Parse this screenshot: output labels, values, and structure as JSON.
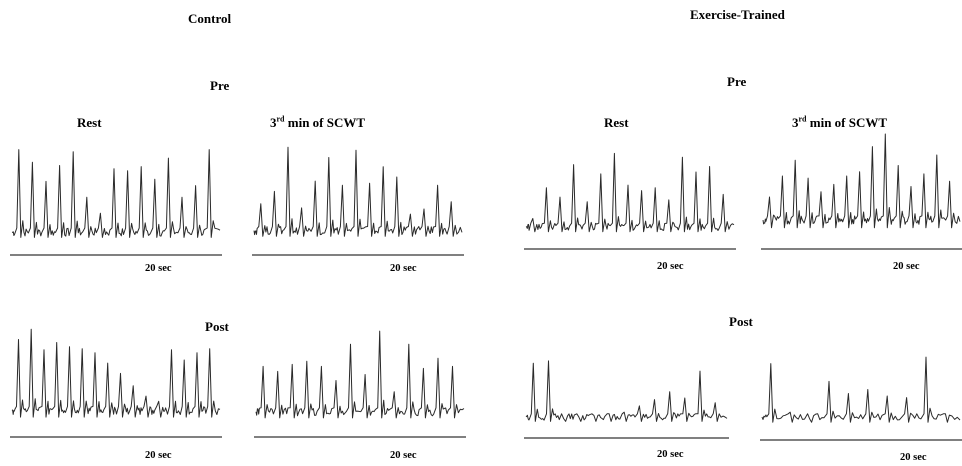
{
  "groups": {
    "control": {
      "title": "Control",
      "pre_label": "Pre",
      "post_label": "Post",
      "rest_label": "Rest",
      "scwt_label_prefix": "3",
      "scwt_label_sup": "rd",
      "scwt_label_suffix": " min of SCWT"
    },
    "trained": {
      "title": "Exercise-Trained",
      "pre_label": "Pre",
      "post_label": "Post",
      "rest_label": "Rest",
      "scwt_label_prefix": "3",
      "scwt_label_sup": "rd",
      "scwt_label_suffix": " min of SCWT"
    }
  },
  "scale_label": "20 sec",
  "panels": [
    {
      "id": "control-pre-rest",
      "peaks": [
        0.9,
        0.78,
        0.6,
        0.75,
        0.88,
        0.45,
        0.3,
        0.72,
        0.7,
        0.74,
        0.62,
        0.82,
        0.45,
        0.56,
        0.9
      ],
      "baseline": 0.12
    },
    {
      "id": "control-pre-scwt",
      "peaks": [
        0.4,
        0.52,
        0.95,
        0.36,
        0.62,
        0.85,
        0.58,
        0.92,
        0.6,
        0.76,
        0.66,
        0.3,
        0.35,
        0.58,
        0.42
      ],
      "baseline": 0.14
    },
    {
      "id": "trained-pre-rest",
      "peaks": [
        0.22,
        0.55,
        0.45,
        0.8,
        0.4,
        0.7,
        0.92,
        0.58,
        0.52,
        0.55,
        0.42,
        0.88,
        0.72,
        0.78,
        0.48
      ],
      "baseline": 0.13
    },
    {
      "id": "trained-pre-scwt",
      "peaks": [
        0.4,
        0.6,
        0.75,
        0.58,
        0.45,
        0.52,
        0.6,
        0.64,
        0.88,
        1.0,
        0.7,
        0.5,
        0.62,
        0.8,
        0.55
      ],
      "baseline": 0.18
    },
    {
      "id": "control-post-rest",
      "peaks": [
        0.85,
        0.95,
        0.75,
        0.82,
        0.78,
        0.76,
        0.72,
        0.62,
        0.52,
        0.4,
        0.3,
        0.25,
        0.75,
        0.65,
        0.72,
        0.76
      ],
      "baseline": 0.16
    },
    {
      "id": "control-post-scwt",
      "peaks": [
        0.6,
        0.55,
        0.62,
        0.65,
        0.6,
        0.46,
        0.82,
        0.52,
        0.95,
        0.35,
        0.82,
        0.58,
        0.68,
        0.6
      ],
      "baseline": 0.15
    },
    {
      "id": "trained-post-rest",
      "peaks": [
        0.82,
        0.85,
        0.12,
        0.14,
        0.16,
        0.18,
        0.2,
        0.28,
        0.36,
        0.46,
        0.38,
        0.72,
        0.32
      ],
      "baseline": 0.14
    },
    {
      "id": "trained-post-scwt",
      "peaks": [
        0.82,
        0.22,
        0.14,
        0.6,
        0.45,
        0.5,
        0.42,
        0.4,
        0.9,
        0.2
      ],
      "baseline": 0.16
    }
  ]
}
